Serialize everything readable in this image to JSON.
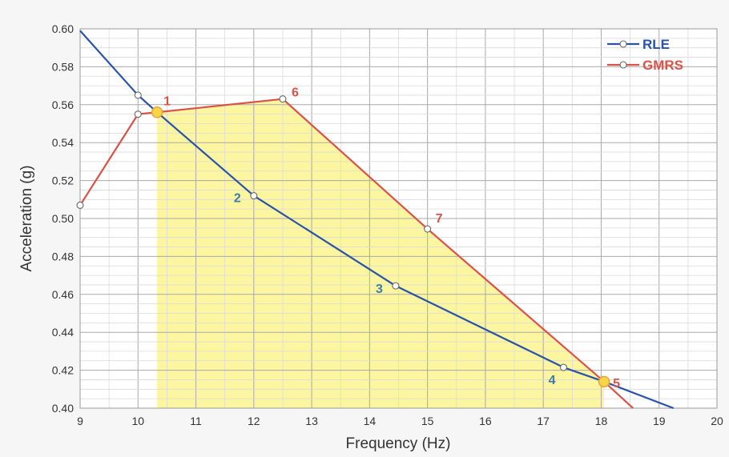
{
  "chart_data": {
    "type": "line",
    "xlabel": "Frequency (Hz)",
    "ylabel": "Acceleration (g)",
    "xlim": [
      9,
      20
    ],
    "ylim": [
      0.4,
      0.6
    ],
    "x_ticks": [
      "9",
      "10",
      "11",
      "12",
      "13",
      "14",
      "15",
      "16",
      "17",
      "18",
      "19",
      "20"
    ],
    "y_ticks": [
      "0.40",
      "0.42",
      "0.44",
      "0.46",
      "0.48",
      "0.50",
      "0.52",
      "0.54",
      "0.56",
      "0.58",
      "0.60"
    ],
    "grid": true,
    "legend_position": "top-right",
    "series": [
      {
        "name": "RLE",
        "color": "#2a52a8",
        "points": [
          {
            "x": 9.0,
            "y": 0.599
          },
          {
            "x": 10.0,
            "y": 0.565
          },
          {
            "x": 10.33,
            "y": 0.556
          },
          {
            "x": 12.0,
            "y": 0.512
          },
          {
            "x": 14.45,
            "y": 0.4645
          },
          {
            "x": 17.35,
            "y": 0.4215
          },
          {
            "x": 18.05,
            "y": 0.414
          },
          {
            "x": 19.25,
            "y": 0.4
          }
        ],
        "markers": [
          1,
          3,
          4,
          5
        ]
      },
      {
        "name": "GMRS",
        "color": "#d9534a",
        "points": [
          {
            "x": 9.0,
            "y": 0.507
          },
          {
            "x": 10.0,
            "y": 0.555
          },
          {
            "x": 10.33,
            "y": 0.556
          },
          {
            "x": 12.5,
            "y": 0.563
          },
          {
            "x": 15.0,
            "y": 0.4945
          },
          {
            "x": 18.05,
            "y": 0.414
          },
          {
            "x": 18.55,
            "y": 0.4
          }
        ],
        "markers": [
          0,
          1,
          3,
          4
        ]
      }
    ],
    "intersection_points": [
      {
        "x": 10.33,
        "y": 0.556
      },
      {
        "x": 18.05,
        "y": 0.414
      }
    ],
    "shaded_region": {
      "color": "#fdf6a0",
      "upper": [
        {
          "x": 10.33,
          "y": 0.556
        },
        {
          "x": 12.5,
          "y": 0.563
        },
        {
          "x": 15.0,
          "y": 0.4945
        },
        {
          "x": 18.05,
          "y": 0.414
        }
      ]
    },
    "annotations": [
      {
        "text": "1",
        "x": 10.33,
        "y": 0.556,
        "color": "#d9534a"
      },
      {
        "text": "2",
        "x": 12.0,
        "y": 0.512,
        "color": "#3f7aa6"
      },
      {
        "text": "3",
        "x": 14.45,
        "y": 0.4645,
        "color": "#3f7aa6"
      },
      {
        "text": "4",
        "x": 17.35,
        "y": 0.4215,
        "color": "#3f7aa6"
      },
      {
        "text": "5",
        "x": 18.05,
        "y": 0.414,
        "color": "#d9534a"
      },
      {
        "text": "6",
        "x": 12.5,
        "y": 0.563,
        "color": "#d9534a"
      },
      {
        "text": "7",
        "x": 15.0,
        "y": 0.4945,
        "color": "#d9534a"
      }
    ]
  }
}
